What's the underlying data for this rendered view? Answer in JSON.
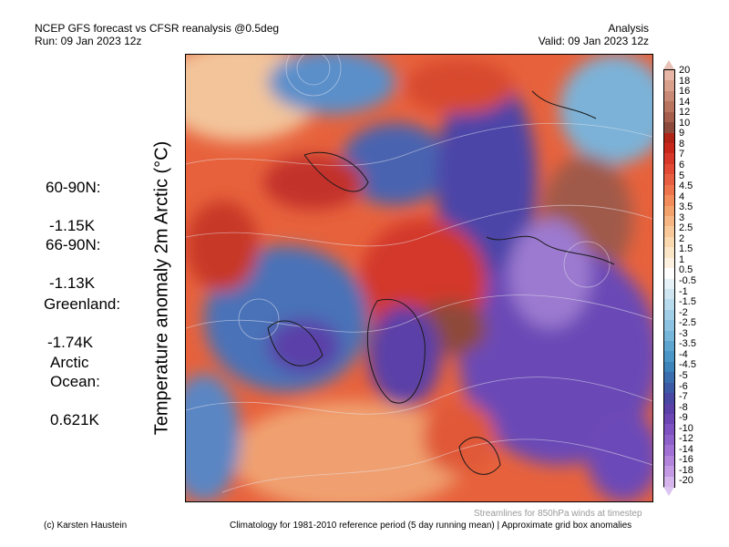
{
  "header": {
    "title": "NCEP GFS forecast vs CFSR reanalysis @0.5deg",
    "run": "Run: 09 Jan 2023 12z",
    "mode": "Analysis",
    "valid": "Valid: 09 Jan 2023 12z"
  },
  "stats": [
    {
      "label": "60-90N:",
      "value": "-1.15K"
    },
    {
      "label": "66-90N:",
      "value": "-1.13K"
    },
    {
      "label": "Greenland:",
      "value": "-1.74K"
    },
    {
      "label": "Arctic\nOcean:",
      "value": "0.621K"
    }
  ],
  "map": {
    "ylabel": "Temperature anomaly 2m Arctic (°C)",
    "streamline_note": "Streamlines for 850hPa winds at timestep"
  },
  "colorbar": {
    "ticks": [
      "20",
      "18",
      "16",
      "14",
      "12",
      "10",
      "9",
      "8",
      "7",
      "6",
      "5",
      "4.5",
      "4",
      "3.5",
      "3",
      "2.5",
      "2",
      "1.5",
      "1",
      "0.5",
      "-0.5",
      "-1",
      "-1.5",
      "-2",
      "-2.5",
      "-3",
      "-3.5",
      "-4",
      "-4.5",
      "-5",
      "-6",
      "-7",
      "-8",
      "-9",
      "-10",
      "-12",
      "-14",
      "-16",
      "-18",
      "-20"
    ],
    "colors": [
      "#e8b6a6",
      "#d9a08c",
      "#c88a76",
      "#b97460",
      "#a55e4c",
      "#8c4a3c",
      "#b02418",
      "#c8281c",
      "#d8382a",
      "#e24a36",
      "#e85e40",
      "#ee744c",
      "#f28c5a",
      "#f4a26c",
      "#f6b684",
      "#f8c89a",
      "#fad8b0",
      "#fbe6c8",
      "#fdf2e2",
      "#ffffff",
      "#e6f2f8",
      "#cfe6f2",
      "#b8dbee",
      "#a2cfe8",
      "#8cc3e2",
      "#76b6da",
      "#5ea6d0",
      "#4a96c6",
      "#3c84ba",
      "#3a6eae",
      "#3c5aa6",
      "#4848a4",
      "#5a40a8",
      "#6c46b4",
      "#7e52c0",
      "#8e60ca",
      "#a070d4",
      "#b284dc",
      "#c49ae4",
      "#d6b4ec"
    ],
    "top_color": "#e8c2b6",
    "bottom_color": "#dcc4f0"
  },
  "footer": {
    "credit": "(c) Karsten Haustein",
    "climatology": "Climatology for 1981-2010 reference period (5 day running mean) | Approximate grid box anomalies"
  }
}
